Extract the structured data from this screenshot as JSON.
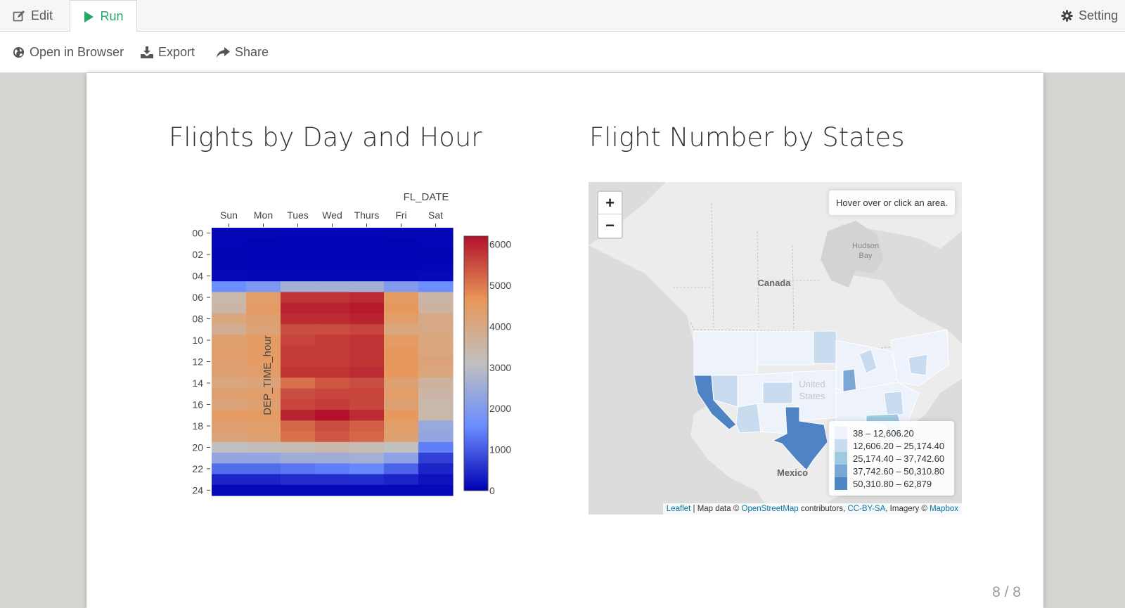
{
  "tabs": {
    "edit_label": "Edit",
    "run_label": "Run",
    "setting_label": "Setting"
  },
  "toolbar": {
    "open_browser_label": "Open in Browser",
    "export_label": "Export",
    "share_label": "Share"
  },
  "slide": {
    "left_title": "Flights by Day and Hour",
    "right_title": "Flight Number by States",
    "page_number": "8 / 8"
  },
  "chart_data": {
    "type": "heatmap",
    "xlabel": "FL_DATE",
    "ylabel": "DEP_TIME_hour",
    "x": [
      "Sun",
      "Mon",
      "Tues",
      "Wed",
      "Thurs",
      "Fri",
      "Sat"
    ],
    "y_ticks": [
      "00",
      "02",
      "04",
      "06",
      "08",
      "10",
      "12",
      "14",
      "16",
      "18",
      "20",
      "22",
      "24"
    ],
    "y": [
      0,
      1,
      2,
      3,
      4,
      5,
      6,
      7,
      8,
      9,
      10,
      11,
      12,
      13,
      14,
      15,
      16,
      17,
      18,
      19,
      20,
      21,
      22,
      23,
      24
    ],
    "z": [
      [
        80,
        70,
        60,
        60,
        60,
        70,
        80
      ],
      [
        60,
        50,
        40,
        40,
        40,
        50,
        60
      ],
      [
        50,
        40,
        30,
        30,
        30,
        40,
        50
      ],
      [
        50,
        40,
        30,
        30,
        40,
        40,
        60
      ],
      [
        100,
        90,
        80,
        80,
        90,
        90,
        110
      ],
      [
        1600,
        1900,
        2600,
        2600,
        2600,
        2000,
        1600
      ],
      [
        3400,
        4400,
        5800,
        5800,
        5900,
        4500,
        3500
      ],
      [
        3500,
        4500,
        6000,
        6000,
        6100,
        4600,
        3600
      ],
      [
        4100,
        4300,
        5900,
        5900,
        6000,
        4400,
        4000
      ],
      [
        3800,
        4200,
        5500,
        5500,
        5600,
        4100,
        4000
      ],
      [
        4300,
        4500,
        5600,
        5700,
        5800,
        4500,
        4100
      ],
      [
        4400,
        4500,
        5700,
        5700,
        5800,
        4600,
        4100
      ],
      [
        4300,
        4500,
        5700,
        5700,
        5800,
        4600,
        4200
      ],
      [
        4300,
        4400,
        5800,
        5800,
        5900,
        4600,
        4100
      ],
      [
        4100,
        4200,
        5100,
        5400,
        5500,
        4300,
        3600
      ],
      [
        4300,
        4400,
        5500,
        5600,
        5600,
        4400,
        3500
      ],
      [
        4200,
        4300,
        5600,
        5700,
        5600,
        4300,
        3400
      ],
      [
        4500,
        4500,
        6000,
        6200,
        5900,
        4600,
        3400
      ],
      [
        4300,
        4400,
        5200,
        5500,
        5300,
        4400,
        2400
      ],
      [
        4200,
        4300,
        5100,
        5400,
        5200,
        4300,
        2300
      ],
      [
        3100,
        3200,
        3300,
        3400,
        3300,
        3100,
        1400
      ],
      [
        2300,
        2300,
        2500,
        2500,
        2600,
        2200,
        700
      ],
      [
        1200,
        1200,
        1300,
        1400,
        1500,
        1100,
        400
      ],
      [
        400,
        400,
        500,
        500,
        500,
        400,
        200
      ],
      [
        100,
        100,
        100,
        100,
        100,
        100,
        100
      ]
    ],
    "colorbar": {
      "ticks": [
        0,
        1000,
        2000,
        3000,
        4000,
        5000,
        6000
      ],
      "zmin": 0,
      "zmax": 6200
    },
    "colorscale": [
      "#0000b3",
      "#6a8cff",
      "#c0c0c0",
      "#e8975a",
      "#b2112a"
    ]
  },
  "map": {
    "zoom_in_label": "+",
    "zoom_out_label": "−",
    "info_text": "Hover over or click an area.",
    "places": {
      "hudson1": "Hudson",
      "hudson2": "Bay",
      "canada": "Canada",
      "us1": "United",
      "us2": "States",
      "mexico": "Mexico"
    },
    "legend": [
      {
        "label": "38 – 12,606.20",
        "color": "#eef3fb"
      },
      {
        "label": "12,606.20 – 25,174.40",
        "color": "#c9dcef"
      },
      {
        "label": "25,174.40 – 37,742.60",
        "color": "#9ecae1"
      },
      {
        "label": "37,742.60 – 50,310.80",
        "color": "#7ba7d4"
      },
      {
        "label": "50,310.80 – 62,879",
        "color": "#4f84c4"
      }
    ],
    "attribution": {
      "leaflet": "Leaflet",
      "sep": " | Map data © ",
      "osm": "OpenStreetMap",
      "contrib": " contributors, ",
      "license": "CC-BY-SA",
      "imagery": ", Imagery © ",
      "mapbox": "Mapbox"
    }
  }
}
